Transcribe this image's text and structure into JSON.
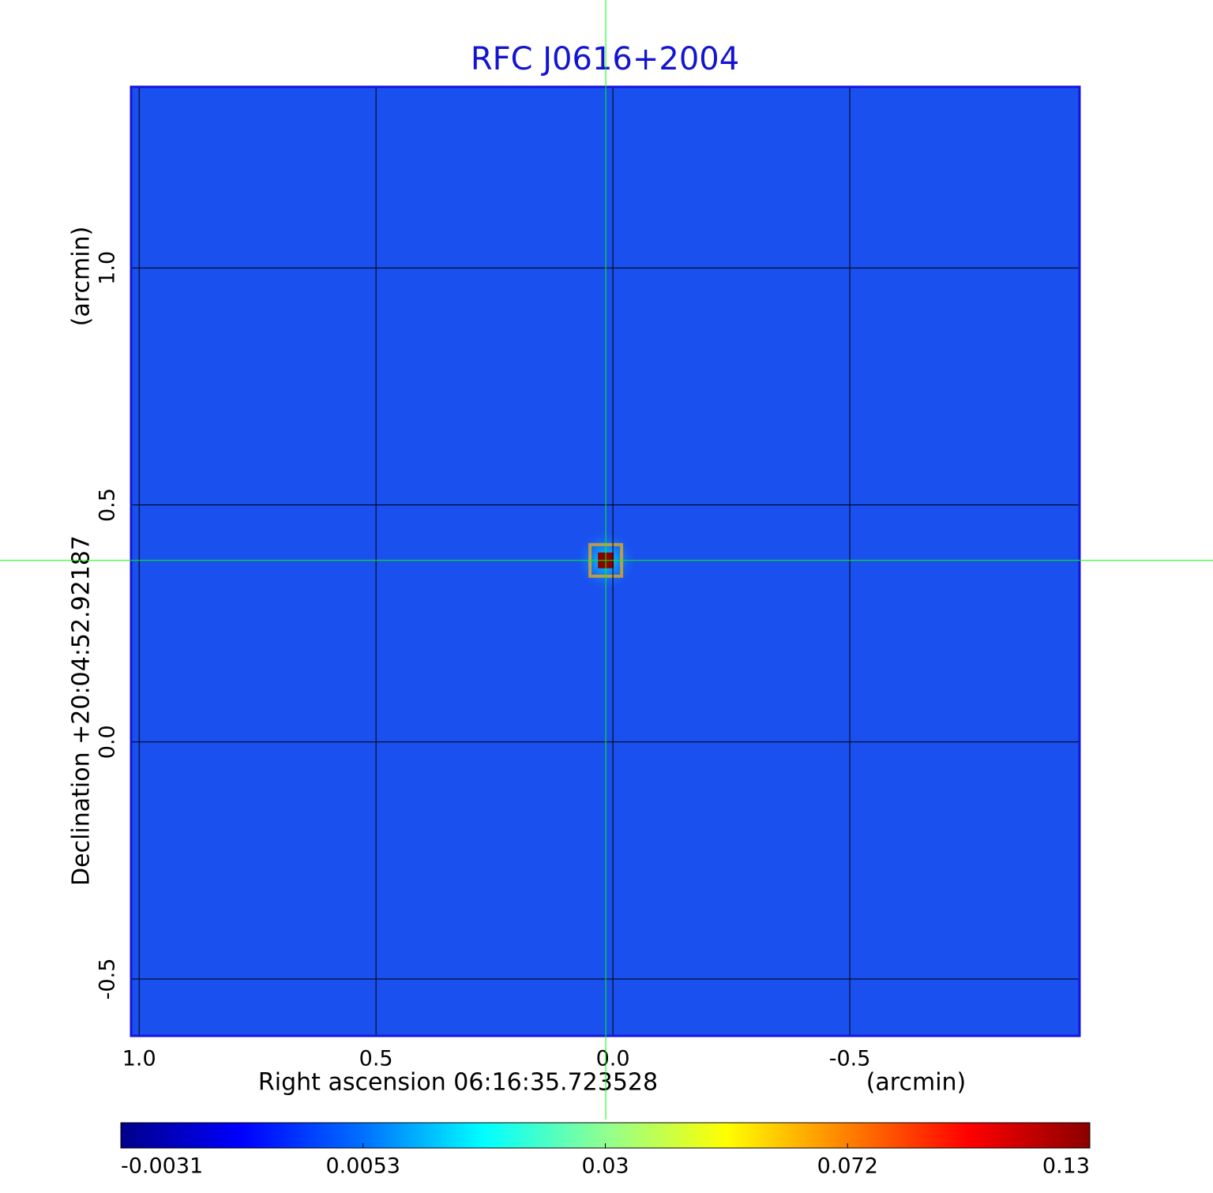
{
  "chart_data": {
    "type": "image",
    "title": "RFC J0616+2004",
    "x_label": "Right ascension  06:16:35.723528",
    "x_unit": "(arcmin)",
    "y_label": "Declination  +20:04:52.92187",
    "y_unit": "(arcmin)",
    "xlim": [
      1.017,
      -0.985
    ],
    "ylim": [
      -0.62,
      1.382
    ],
    "xticks": [
      {
        "value": 1,
        "label": "1.0"
      },
      0.5,
      {
        "value": 0,
        "label": "0.0"
      },
      -0.5
    ],
    "yticks": [
      -0.5,
      {
        "value": 0,
        "label": "0.0"
      },
      0.5,
      {
        "value": 1,
        "label": "1.0"
      }
    ],
    "grid": true,
    "crosshair": {
      "x": 0.015,
      "y": 0.383,
      "color": "#00ff00"
    },
    "source": {
      "x": 0.015,
      "y": 0.383,
      "peak": 0.13
    },
    "colorbar_ticks": [
      -0.0031,
      0.0053,
      0.03,
      0.072,
      0.13
    ],
    "colormap": [
      "#00008b",
      "#0000ff",
      "#0070ff",
      "#00ffff",
      "#90ff90",
      "#ffff00",
      "#ff8000",
      "#ff0000",
      "#8b0000"
    ]
  }
}
